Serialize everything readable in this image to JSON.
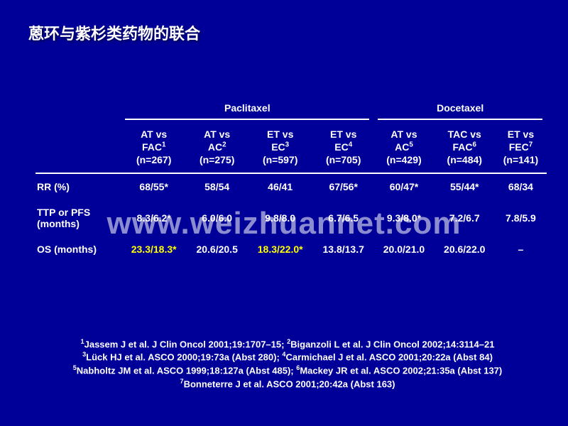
{
  "title": "蒽环与紫杉类药物的联合",
  "watermark": "www.weizhuannet.com",
  "groups": [
    {
      "label": "Paclitaxel",
      "span": 4
    },
    {
      "label": "Docetaxel",
      "span": 3
    }
  ],
  "columns": [
    {
      "l1": "AT vs",
      "l2": "FAC",
      "sup": "1",
      "n": "(n=267)"
    },
    {
      "l1": "AT vs",
      "l2": "AC",
      "sup": "2",
      "n": "(n=275)"
    },
    {
      "l1": "ET vs",
      "l2": "EC",
      "sup": "3",
      "n": "(n=597)"
    },
    {
      "l1": "ET vs",
      "l2": "EC",
      "sup": "4",
      "n": "(n=705)"
    },
    {
      "l1": "AT vs",
      "l2": "AC",
      "sup": "5",
      "n": "(n=429)"
    },
    {
      "l1": "TAC vs",
      "l2": "FAC",
      "sup": "6",
      "n": "(n=484)"
    },
    {
      "l1": "ET vs",
      "l2": "FEC",
      "sup": "7",
      "n": "(n=141)"
    }
  ],
  "rows": [
    {
      "label": "RR (%)",
      "vals": [
        {
          "v": "68/55*"
        },
        {
          "v": "58/54"
        },
        {
          "v": "46/41"
        },
        {
          "v": "67/56*"
        },
        {
          "v": "60/47*"
        },
        {
          "v": "55/44*"
        },
        {
          "v": "68/34"
        }
      ]
    },
    {
      "label": "TTP or PFS<br>(months)",
      "vals": [
        {
          "v": "8.3/6.2*"
        },
        {
          "v": "6.0/6.0"
        },
        {
          "v": "9.8/8.0"
        },
        {
          "v": "6.7/6.5"
        },
        {
          "v": "9.3/8.0*"
        },
        {
          "v": "7.2/6.7"
        },
        {
          "v": "7.8/5.9"
        }
      ]
    },
    {
      "label": "OS (months)",
      "vals": [
        {
          "v": "23.3/18.3*",
          "c": "yellow"
        },
        {
          "v": "20.6/20.5"
        },
        {
          "v": "18.3/22.0*",
          "c": "yellow"
        },
        {
          "v": "13.8/13.7"
        },
        {
          "v": "20.0/21.0"
        },
        {
          "v": "20.6/22.0"
        },
        {
          "v": "–"
        }
      ]
    }
  ],
  "refs": [
    "<sup>1</sup>Jassem J et al. J Clin Oncol 2001;19:1707–15; <sup>2</sup>Biganzoli L et al. J Clin Oncol 2002;14:3114–21",
    "<sup>3</sup>Lück HJ et al. ASCO 2000;19:73a (Abst 280); <sup>4</sup>Carmichael J et al. ASCO 2001;20:22a (Abst 84)",
    "<sup>5</sup>Nabholtz JM et al. ASCO 1999;18:127a (Abst 485); <sup>6</sup>Mackey JR et al. ASCO 2002;21:35a (Abst 137)",
    "<sup>7</sup>Bonneterre J et al. ASCO 2001;20:42a (Abst 163)"
  ]
}
